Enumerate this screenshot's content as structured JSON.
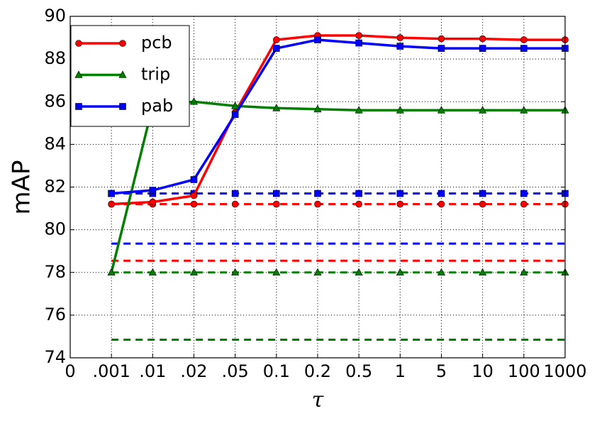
{
  "chart_data": {
    "type": "line",
    "xlabel": "τ",
    "ylabel": "mAP",
    "categories": [
      "0",
      ".001",
      ".01",
      ".02",
      ".05",
      "0.1",
      "0.2",
      "0.5",
      "1",
      "5",
      "10",
      "100",
      "1000"
    ],
    "ylim": [
      74,
      90
    ],
    "yticks": [
      74,
      76,
      78,
      80,
      82,
      84,
      86,
      88,
      90
    ],
    "grid": true,
    "legend": "upper left",
    "series": [
      {
        "name": "pcb",
        "color": "#ff0000",
        "linestyle": "solid",
        "marker": "o",
        "values": [
          null,
          81.2,
          81.3,
          81.6,
          85.5,
          88.9,
          89.1,
          89.1,
          89.0,
          88.95,
          88.95,
          88.9,
          88.9
        ]
      },
      {
        "name": "trip",
        "color": "#007f00",
        "linestyle": "solid",
        "marker": "^",
        "values": [
          null,
          78.0,
          85.8,
          86.0,
          85.8,
          85.7,
          85.65,
          85.6,
          85.6,
          85.6,
          85.6,
          85.6,
          85.6
        ]
      },
      {
        "name": "pab",
        "color": "#0000ff",
        "linestyle": "solid",
        "marker": "s",
        "values": [
          null,
          81.7,
          81.85,
          82.35,
          85.4,
          88.5,
          88.9,
          88.75,
          88.6,
          88.5,
          88.5,
          88.5,
          88.5
        ]
      },
      {
        "color": "#0000ff",
        "linestyle": "dashed",
        "marker": "s",
        "values": [
          null,
          81.7,
          81.7,
          81.7,
          81.7,
          81.7,
          81.7,
          81.7,
          81.7,
          81.7,
          81.7,
          81.7,
          81.7
        ]
      },
      {
        "color": "#ff0000",
        "linestyle": "dashed",
        "marker": "o",
        "values": [
          null,
          81.2,
          81.2,
          81.2,
          81.2,
          81.2,
          81.2,
          81.2,
          81.2,
          81.2,
          81.2,
          81.2,
          81.2
        ]
      },
      {
        "color": "#007f00",
        "linestyle": "dashed",
        "marker": "^",
        "values": [
          null,
          78.0,
          78.0,
          78.0,
          78.0,
          78.0,
          78.0,
          78.0,
          78.0,
          78.0,
          78.0,
          78.0,
          78.0
        ]
      },
      {
        "color": "#0000ff",
        "linestyle": "dashed",
        "values": [
          null,
          79.35,
          79.35,
          79.35,
          79.35,
          79.35,
          79.35,
          79.35,
          79.35,
          79.35,
          79.35,
          79.35,
          79.35
        ]
      },
      {
        "color": "#ff0000",
        "linestyle": "dashed",
        "values": [
          null,
          78.55,
          78.55,
          78.55,
          78.55,
          78.55,
          78.55,
          78.55,
          78.55,
          78.55,
          78.55,
          78.55,
          78.55
        ]
      },
      {
        "color": "#007f00",
        "linestyle": "dashed",
        "values": [
          null,
          74.85,
          74.85,
          74.85,
          74.85,
          74.85,
          74.85,
          74.85,
          74.85,
          74.85,
          74.85,
          74.85,
          74.85
        ]
      }
    ]
  }
}
